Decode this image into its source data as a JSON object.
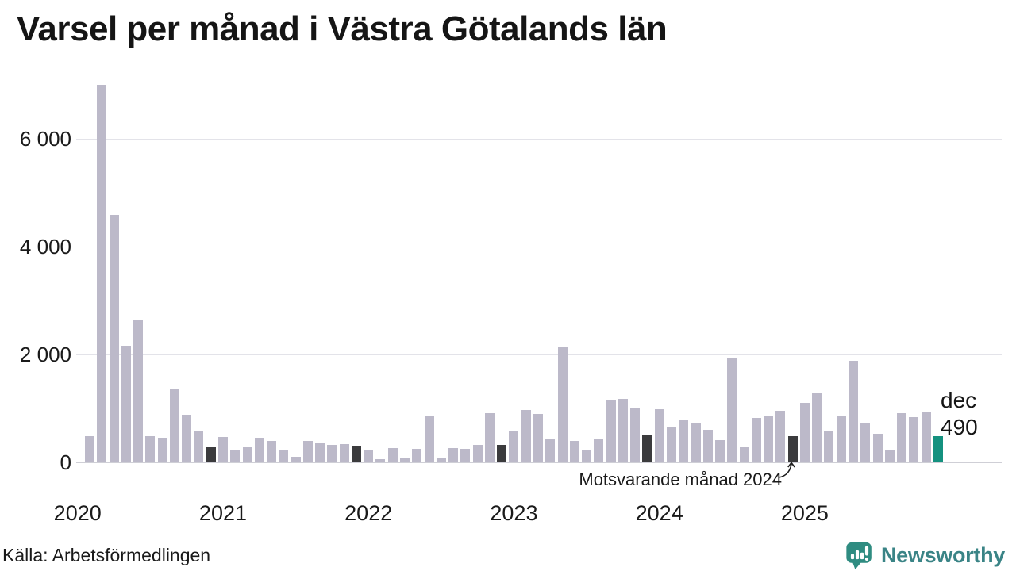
{
  "title": "Varsel per månad i Västra Götalands län",
  "source": "Källa: Arbetsförmedlingen",
  "brand": {
    "name": "Newsworthy",
    "mark_color": "#2f8c81",
    "text_color": "#3a8486"
  },
  "annotation": {
    "text": "Motsvarande månad 2024",
    "target_month": "dec 2024"
  },
  "current_point_label": {
    "line1": "dec",
    "line2": "490"
  },
  "colors": {
    "bar_default": "#bcb9c9",
    "bar_december": "#3b3b3d",
    "bar_current": "#14917f",
    "gridline": "#e3e3e9",
    "baseline": "#cfcfd6",
    "text": "#1a1a1a"
  },
  "chart_data": {
    "type": "bar",
    "title": "Varsel per månad i Västra Götalands län",
    "ylim": [
      0,
      7100
    ],
    "yticks": [
      0,
      2000,
      4000,
      6000
    ],
    "ytick_labels": [
      "0",
      "2 000",
      "4 000",
      "6 000"
    ],
    "grid": "horizontal",
    "x_year_labels": [
      "2020",
      "2021",
      "2022",
      "2023",
      "2024",
      "2025"
    ],
    "highlight_note": "December bars shown dark; dec 2025 shown teal with value label 490",
    "series": [
      {
        "label": "feb 2020",
        "value": 490
      },
      {
        "label": "mar 2020",
        "value": 7000
      },
      {
        "label": "apr 2020",
        "value": 4590
      },
      {
        "label": "maj 2020",
        "value": 2160
      },
      {
        "label": "jun 2020",
        "value": 2630
      },
      {
        "label": "jul 2020",
        "value": 480
      },
      {
        "label": "aug 2020",
        "value": 455
      },
      {
        "label": "sep 2020",
        "value": 1370
      },
      {
        "label": "okt 2020",
        "value": 880
      },
      {
        "label": "nov 2020",
        "value": 575
      },
      {
        "label": "dec 2020",
        "value": 280,
        "type": "december"
      },
      {
        "label": "jan 2021",
        "value": 475
      },
      {
        "label": "feb 2021",
        "value": 225
      },
      {
        "label": "mar 2021",
        "value": 275
      },
      {
        "label": "apr 2021",
        "value": 450
      },
      {
        "label": "maj 2021",
        "value": 400
      },
      {
        "label": "jun 2021",
        "value": 235
      },
      {
        "label": "jul 2021",
        "value": 100
      },
      {
        "label": "aug 2021",
        "value": 390
      },
      {
        "label": "sep 2021",
        "value": 355
      },
      {
        "label": "okt 2021",
        "value": 330
      },
      {
        "label": "nov 2021",
        "value": 340
      },
      {
        "label": "dec 2021",
        "value": 290,
        "type": "december"
      },
      {
        "label": "jan 2022",
        "value": 240
      },
      {
        "label": "feb 2022",
        "value": 55
      },
      {
        "label": "mar 2022",
        "value": 265
      },
      {
        "label": "apr 2022",
        "value": 75
      },
      {
        "label": "maj 2022",
        "value": 255
      },
      {
        "label": "jun 2022",
        "value": 870
      },
      {
        "label": "jul 2022",
        "value": 75
      },
      {
        "label": "aug 2022",
        "value": 265
      },
      {
        "label": "sep 2022",
        "value": 255
      },
      {
        "label": "okt 2022",
        "value": 330
      },
      {
        "label": "nov 2022",
        "value": 910
      },
      {
        "label": "dec 2022",
        "value": 330,
        "type": "december"
      },
      {
        "label": "jan 2023",
        "value": 575
      },
      {
        "label": "feb 2023",
        "value": 970
      },
      {
        "label": "mar 2023",
        "value": 900
      },
      {
        "label": "apr 2023",
        "value": 430
      },
      {
        "label": "maj 2023",
        "value": 2130
      },
      {
        "label": "jun 2023",
        "value": 400
      },
      {
        "label": "jul 2023",
        "value": 230
      },
      {
        "label": "aug 2023",
        "value": 445
      },
      {
        "label": "sep 2023",
        "value": 1140
      },
      {
        "label": "okt 2023",
        "value": 1180
      },
      {
        "label": "nov 2023",
        "value": 1010
      },
      {
        "label": "dec 2023",
        "value": 500,
        "type": "december"
      },
      {
        "label": "jan 2024",
        "value": 990
      },
      {
        "label": "feb 2024",
        "value": 660
      },
      {
        "label": "mar 2024",
        "value": 785
      },
      {
        "label": "apr 2024",
        "value": 735
      },
      {
        "label": "maj 2024",
        "value": 600
      },
      {
        "label": "jun 2024",
        "value": 405
      },
      {
        "label": "jul 2024",
        "value": 1925
      },
      {
        "label": "aug 2024",
        "value": 280
      },
      {
        "label": "sep 2024",
        "value": 825
      },
      {
        "label": "okt 2024",
        "value": 875
      },
      {
        "label": "nov 2024",
        "value": 950
      },
      {
        "label": "dec 2024",
        "value": 490,
        "type": "december",
        "annotated": true
      },
      {
        "label": "jan 2025",
        "value": 1110
      },
      {
        "label": "feb 2025",
        "value": 1280
      },
      {
        "label": "mar 2025",
        "value": 580
      },
      {
        "label": "apr 2025",
        "value": 865
      },
      {
        "label": "maj 2025",
        "value": 1885
      },
      {
        "label": "jun 2025",
        "value": 740
      },
      {
        "label": "jul 2025",
        "value": 530
      },
      {
        "label": "aug 2025",
        "value": 230
      },
      {
        "label": "sep 2025",
        "value": 915
      },
      {
        "label": "okt 2025",
        "value": 840
      },
      {
        "label": "nov 2025",
        "value": 925
      },
      {
        "label": "dec 2025",
        "value": 490,
        "type": "current"
      }
    ]
  }
}
